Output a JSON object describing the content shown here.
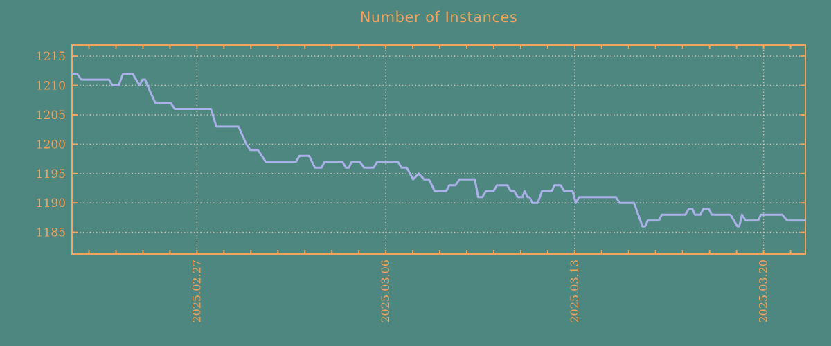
{
  "colors": {
    "background": "#4e8680",
    "accent_orange": "#f0a35c",
    "line_lavender": "#a9b1e8",
    "grid_dotted": "#c6c6bc"
  },
  "chart_data": {
    "type": "line",
    "title": "Number of Instances",
    "series_name": "number-of-instances",
    "legend": "none",
    "grid": {
      "horizontal": "dotted",
      "vertical": "dotted-at-labeled-dates-only"
    },
    "x_axis": {
      "unit": "days (ticks daily, labels weekly, labels rotated 90deg reading bottom-to-top)",
      "domain_days": [
        -0.63,
        26.55
      ],
      "tick_day_min": 0,
      "tick_day_max": 26,
      "labeled_ticks": [
        {
          "day": 4,
          "label": "2025.02.27"
        },
        {
          "day": 11,
          "label": "2025.03.06"
        },
        {
          "day": 18,
          "label": "2025.03.13"
        },
        {
          "day": 25,
          "label": "2025.03.20"
        }
      ]
    },
    "y_axis": {
      "domain": [
        1181.3,
        1216.9
      ],
      "ticks": [
        1185,
        1190,
        1195,
        1200,
        1205,
        1210,
        1215
      ]
    },
    "points": [
      [
        -0.62,
        1212
      ],
      [
        -0.44,
        1212
      ],
      [
        -0.28,
        1211
      ],
      [
        0.74,
        1211
      ],
      [
        0.87,
        1210
      ],
      [
        1.1,
        1210
      ],
      [
        1.26,
        1212
      ],
      [
        1.62,
        1212
      ],
      [
        1.87,
        1210
      ],
      [
        1.98,
        1211
      ],
      [
        2.08,
        1211
      ],
      [
        2.26,
        1209
      ],
      [
        2.46,
        1207
      ],
      [
        3.03,
        1207
      ],
      [
        3.18,
        1206
      ],
      [
        4.52,
        1206
      ],
      [
        4.72,
        1203
      ],
      [
        5.54,
        1203
      ],
      [
        5.83,
        1200
      ],
      [
        5.98,
        1199
      ],
      [
        6.26,
        1199
      ],
      [
        6.55,
        1197
      ],
      [
        7.67,
        1197
      ],
      [
        7.8,
        1198
      ],
      [
        8.16,
        1198
      ],
      [
        8.37,
        1196
      ],
      [
        8.62,
        1196
      ],
      [
        8.73,
        1197
      ],
      [
        9.39,
        1197
      ],
      [
        9.52,
        1196
      ],
      [
        9.63,
        1196
      ],
      [
        9.73,
        1197
      ],
      [
        10.04,
        1197
      ],
      [
        10.19,
        1196
      ],
      [
        10.55,
        1196
      ],
      [
        10.68,
        1197
      ],
      [
        11.45,
        1197
      ],
      [
        11.58,
        1196
      ],
      [
        11.78,
        1196
      ],
      [
        12.01,
        1194
      ],
      [
        12.22,
        1195
      ],
      [
        12.42,
        1194
      ],
      [
        12.6,
        1194
      ],
      [
        12.81,
        1192
      ],
      [
        13.24,
        1192
      ],
      [
        13.35,
        1193
      ],
      [
        13.58,
        1193
      ],
      [
        13.73,
        1194
      ],
      [
        14.3,
        1194
      ],
      [
        14.42,
        1191
      ],
      [
        14.58,
        1191
      ],
      [
        14.71,
        1192
      ],
      [
        14.99,
        1192
      ],
      [
        15.12,
        1193
      ],
      [
        15.5,
        1193
      ],
      [
        15.63,
        1192
      ],
      [
        15.76,
        1192
      ],
      [
        15.89,
        1191
      ],
      [
        16.07,
        1191
      ],
      [
        16.14,
        1192
      ],
      [
        16.25,
        1191
      ],
      [
        16.32,
        1191
      ],
      [
        16.43,
        1190
      ],
      [
        16.63,
        1190
      ],
      [
        16.79,
        1192
      ],
      [
        17.15,
        1192
      ],
      [
        17.25,
        1193
      ],
      [
        17.48,
        1193
      ],
      [
        17.61,
        1192
      ],
      [
        17.92,
        1192
      ],
      [
        18.04,
        1190
      ],
      [
        18.17,
        1191
      ],
      [
        19.53,
        1191
      ],
      [
        19.66,
        1190
      ],
      [
        20.2,
        1190
      ],
      [
        20.51,
        1186
      ],
      [
        20.61,
        1186
      ],
      [
        20.71,
        1187
      ],
      [
        21.12,
        1187
      ],
      [
        21.23,
        1188
      ],
      [
        22.1,
        1188
      ],
      [
        22.23,
        1189
      ],
      [
        22.36,
        1189
      ],
      [
        22.46,
        1188
      ],
      [
        22.66,
        1188
      ],
      [
        22.77,
        1189
      ],
      [
        22.97,
        1189
      ],
      [
        23.08,
        1188
      ],
      [
        23.77,
        1188
      ],
      [
        24.03,
        1186
      ],
      [
        24.1,
        1186
      ],
      [
        24.2,
        1188
      ],
      [
        24.33,
        1187
      ],
      [
        24.8,
        1187
      ],
      [
        24.9,
        1188
      ],
      [
        25.69,
        1188
      ],
      [
        25.87,
        1187
      ],
      [
        26.54,
        1187
      ]
    ]
  }
}
